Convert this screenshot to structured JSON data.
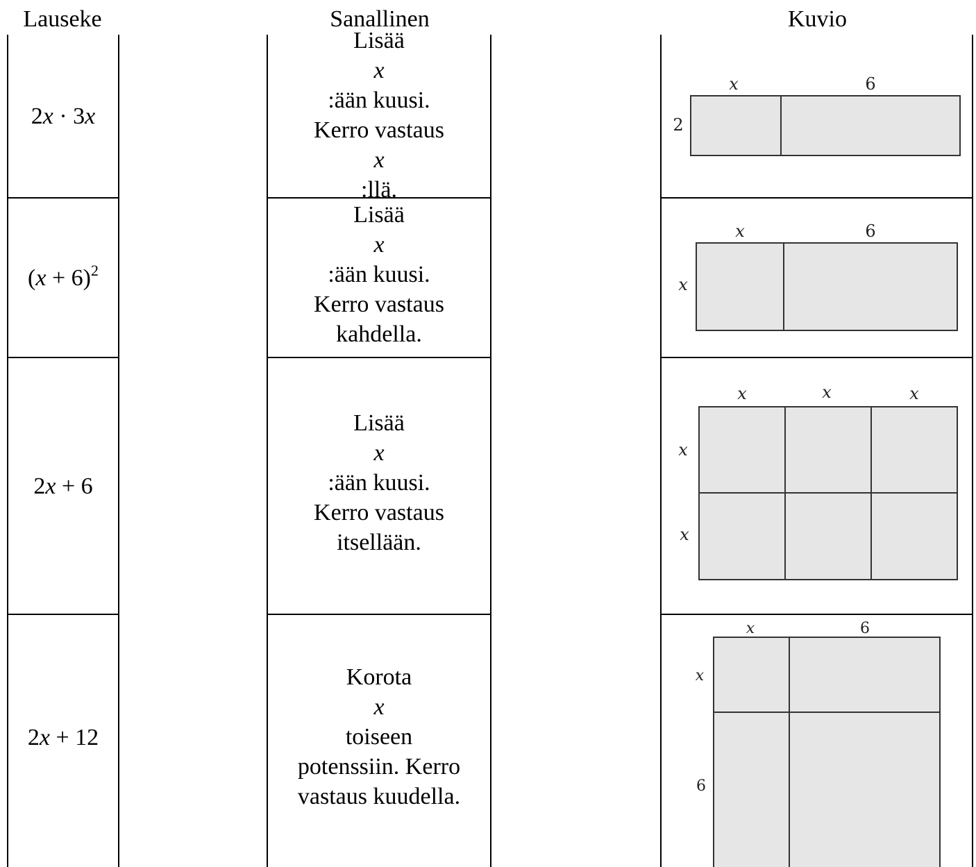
{
  "headers": {
    "lauseke": "Lauseke",
    "sanallinen": "Sanallinen",
    "kuvio": "Kuvio"
  },
  "expressions": [
    {
      "a": "2",
      "b": "x",
      "c": " · 3",
      "d": "x"
    },
    {
      "a": "(",
      "b": "x",
      "c": " + 6)",
      "sup": "2"
    },
    {
      "a": "2",
      "b": "x",
      "c": " + 6"
    },
    {
      "a": "2",
      "b": "x",
      "c": " + 12"
    }
  ],
  "descriptions": [
    {
      "l1a": "Lisää ",
      "l1x": "x",
      "l1b": ":ään kuusi.",
      "l2a": "Kerro vastaus ",
      "l2x": "x",
      "l2b": ":llä."
    },
    {
      "l1a": "Lisää ",
      "l1x": "x",
      "l1b": ":ään kuusi.",
      "l2": "Kerro vastaus",
      "l3": "kahdella."
    },
    {
      "l1a": "Lisää ",
      "l1x": "x",
      "l1b": ":ään kuusi.",
      "l2": "Kerro vastaus",
      "l3": "itsellään."
    },
    {
      "l1a": "Korota ",
      "l1x": "x",
      "l1b": " toiseen",
      "l2": "potenssiin. Kerro",
      "l3": "vastaus kuudella."
    }
  ],
  "figures": {
    "fig1": {
      "top": [
        "x",
        "6"
      ],
      "left": [
        "2"
      ]
    },
    "fig2": {
      "top": [
        "x",
        "6"
      ],
      "left": [
        "x"
      ]
    },
    "fig3": {
      "top": [
        "x",
        "x",
        "x"
      ],
      "left": [
        "x",
        "x"
      ]
    },
    "fig4": {
      "top": [
        "x",
        "6"
      ],
      "left": [
        "x",
        "6"
      ]
    }
  },
  "colors": {
    "fill": "#e6e6e6",
    "stroke": "#333333"
  }
}
